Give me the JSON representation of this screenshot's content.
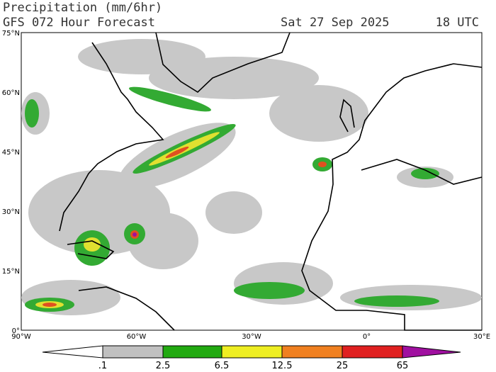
{
  "header": {
    "title": "Precipitation (mm/6hr)",
    "subtitle": "GFS 072 Hour Forecast",
    "date": "Sat 27 Sep 2025",
    "time": "18 UTC"
  },
  "map": {
    "lat_labels": [
      "75°N",
      "60°N",
      "45°N",
      "30°N",
      "15°N",
      "0°"
    ],
    "lon_labels": [
      "90°W",
      "60°W",
      "30°W",
      "0°",
      "30°E"
    ]
  },
  "legend": {
    "labels": [
      ".1",
      "2.5",
      "6.5",
      "12.5",
      "25",
      "65"
    ]
  }
}
